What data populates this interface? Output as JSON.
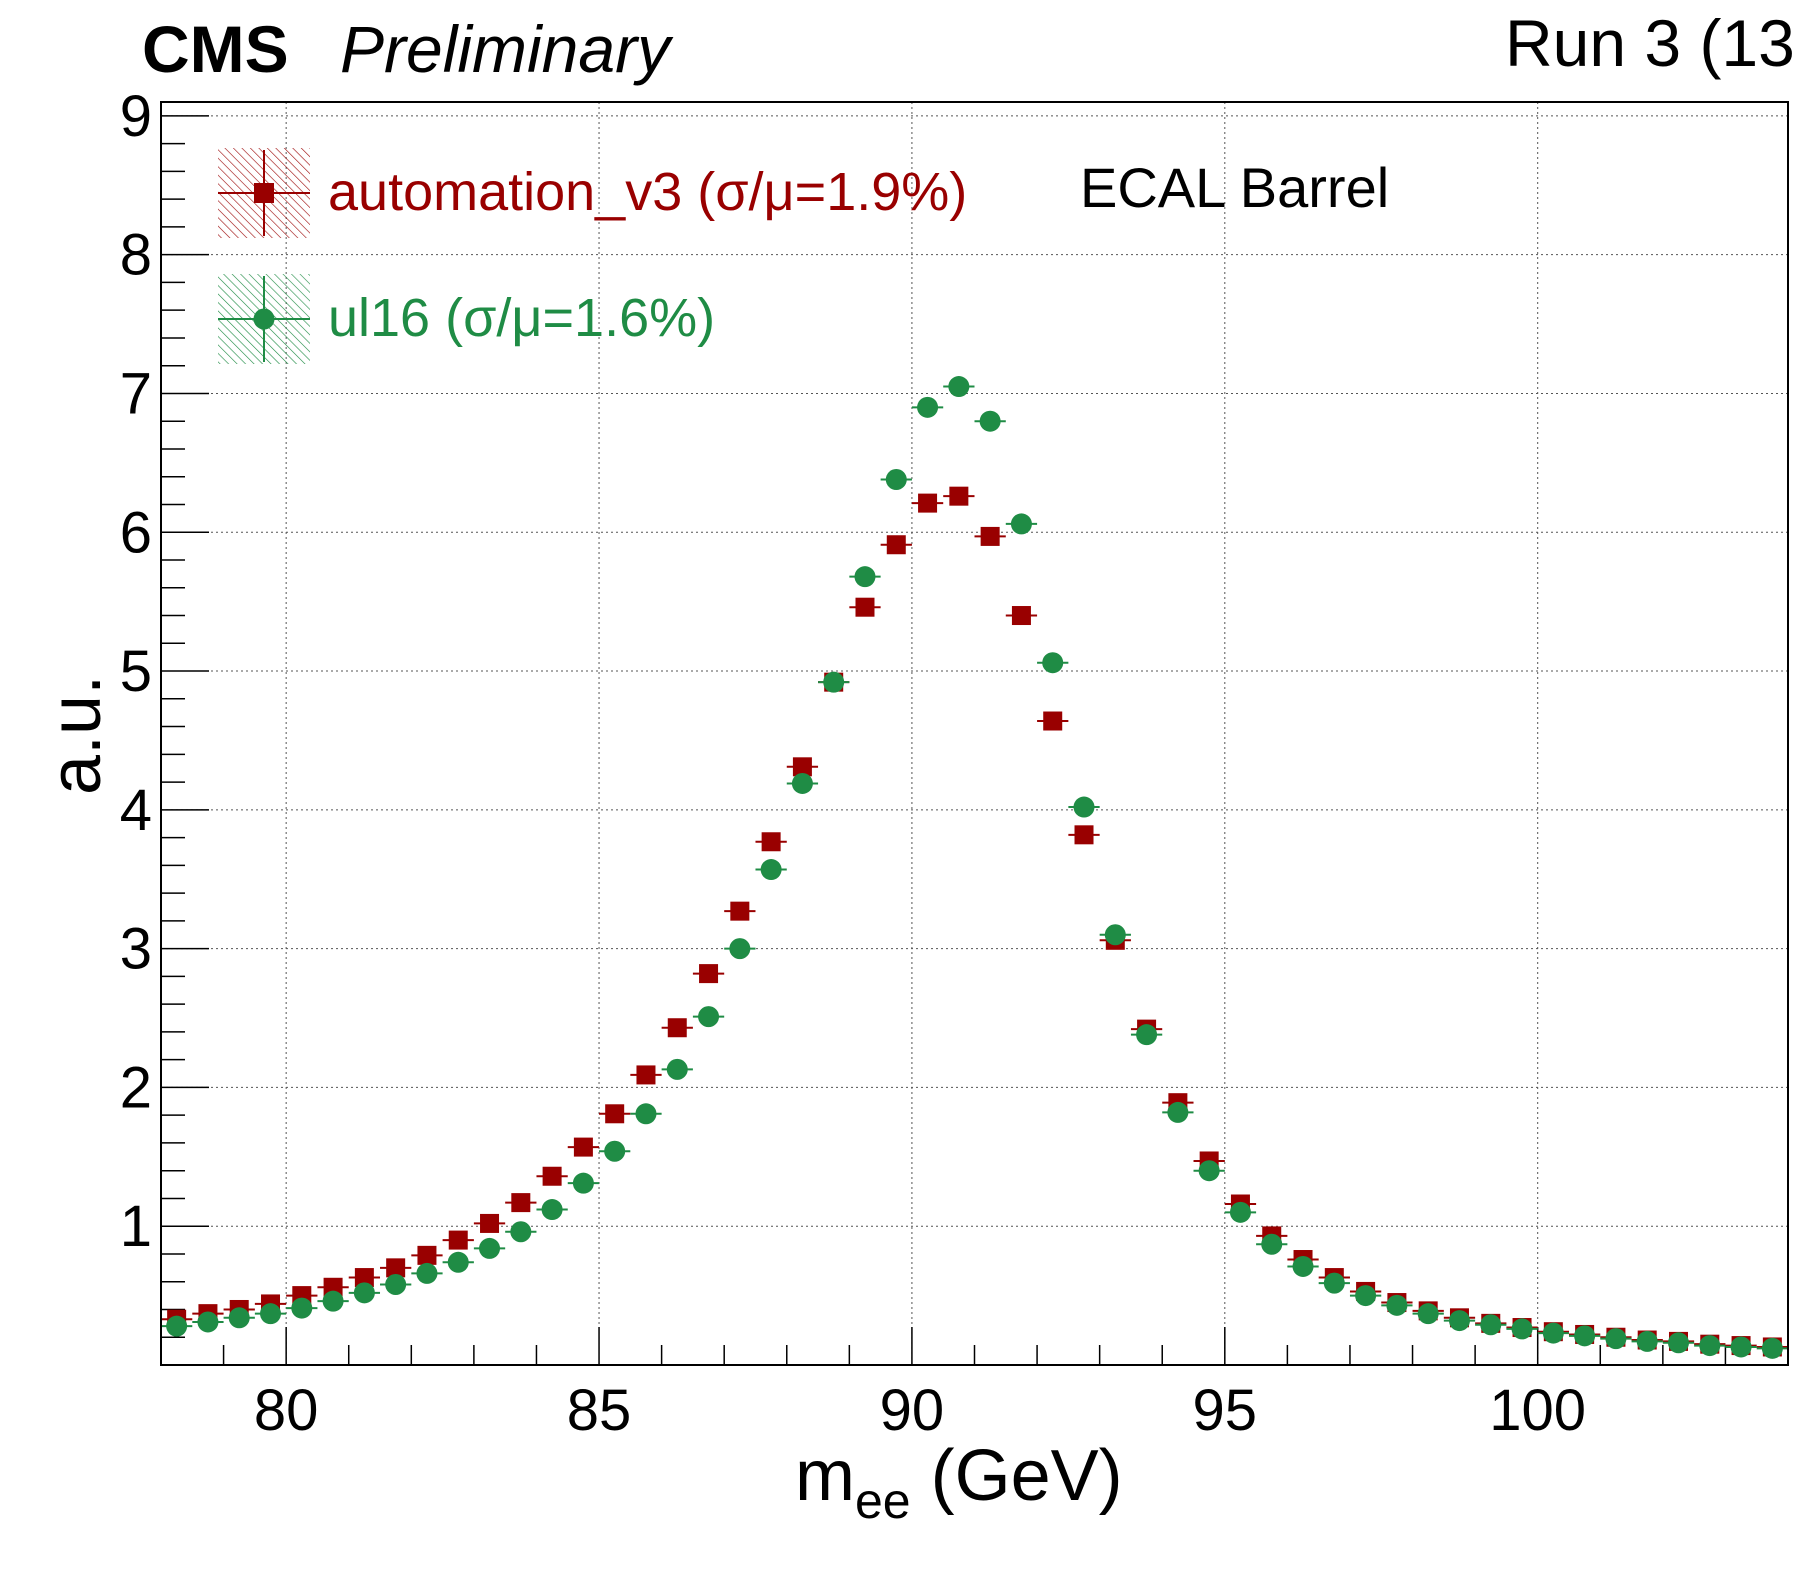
{
  "header": {
    "experiment": "CMS",
    "status": "Preliminary",
    "run_label": "Run 3 (13"
  },
  "annotation": "ECAL Barrel",
  "colors": {
    "automation_v3": "#990000",
    "ul16": "#1f8c45"
  },
  "chart_data": {
    "type": "scatter",
    "xlabel_main": "m",
    "xlabel_sub": "ee",
    "xlabel_unit": " (GeV)",
    "ylabel": "a.u.",
    "xlim": [
      78,
      104
    ],
    "ylim": [
      0,
      9.1
    ],
    "xticks": [
      80,
      85,
      90,
      95,
      100
    ],
    "yticks": [
      1,
      2,
      3,
      4,
      5,
      6,
      7,
      8,
      9
    ],
    "grid": true,
    "legend_position": "top-left",
    "x": [
      78.25,
      78.75,
      79.25,
      79.75,
      80.25,
      80.75,
      81.25,
      81.75,
      82.25,
      82.75,
      83.25,
      83.75,
      84.25,
      84.75,
      85.25,
      85.75,
      86.25,
      86.75,
      87.25,
      87.75,
      88.25,
      88.75,
      89.25,
      89.75,
      90.25,
      90.75,
      91.25,
      91.75,
      92.25,
      92.75,
      93.25,
      93.75,
      94.25,
      94.75,
      95.25,
      95.75,
      96.25,
      96.75,
      97.25,
      97.75,
      98.25,
      98.75,
      99.25,
      99.75,
      100.25,
      100.75,
      101.25,
      101.75,
      102.25,
      102.75,
      103.25,
      103.75
    ],
    "series": [
      {
        "name": "automation_v3",
        "label": "automation_v3 (σ/μ=1.9%)",
        "marker": "square",
        "values": [
          0.33,
          0.37,
          0.4,
          0.44,
          0.5,
          0.56,
          0.63,
          0.7,
          0.79,
          0.9,
          1.02,
          1.17,
          1.36,
          1.57,
          1.81,
          2.09,
          2.43,
          2.82,
          3.27,
          3.77,
          4.31,
          4.92,
          5.46,
          5.91,
          6.21,
          6.26,
          5.97,
          5.4,
          4.64,
          3.82,
          3.06,
          2.42,
          1.89,
          1.47,
          1.16,
          0.93,
          0.76,
          0.63,
          0.53,
          0.45,
          0.39,
          0.34,
          0.3,
          0.27,
          0.24,
          0.22,
          0.2,
          0.18,
          0.17,
          0.15,
          0.14,
          0.13
        ]
      },
      {
        "name": "ul16",
        "label": "ul16 (σ/μ=1.6%)",
        "marker": "circle",
        "values": [
          0.28,
          0.31,
          0.34,
          0.37,
          0.41,
          0.46,
          0.52,
          0.58,
          0.66,
          0.74,
          0.84,
          0.96,
          1.12,
          1.31,
          1.54,
          1.81,
          2.13,
          2.51,
          3.0,
          3.57,
          4.19,
          4.92,
          5.68,
          6.38,
          6.9,
          7.05,
          6.8,
          6.06,
          5.06,
          4.02,
          3.1,
          2.38,
          1.82,
          1.4,
          1.1,
          0.87,
          0.71,
          0.59,
          0.5,
          0.43,
          0.37,
          0.32,
          0.29,
          0.26,
          0.23,
          0.21,
          0.19,
          0.17,
          0.16,
          0.14,
          0.13,
          0.12
        ]
      }
    ]
  }
}
